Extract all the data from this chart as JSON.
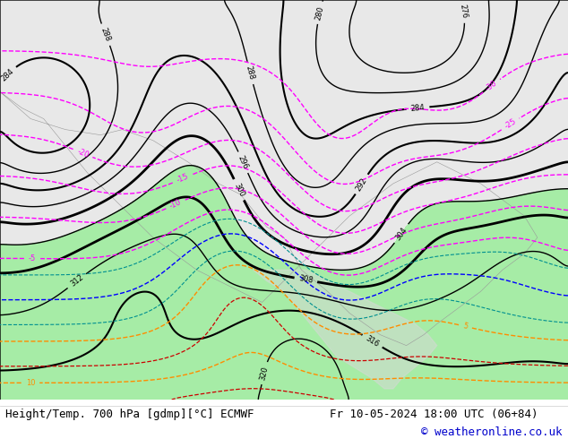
{
  "title_left": "Height/Temp. 700 hPa [gdmp][°C] ECMWF",
  "title_right": "Fr 10-05-2024 18:00 UTC (06+84)",
  "copyright": "© weatheronline.co.uk",
  "background_color": "#ffffff",
  "footer_color": "#000000",
  "copyright_color": "#0000cc",
  "fig_width": 6.34,
  "fig_height": 4.9,
  "dpi": 100,
  "footer_fontsize": 9,
  "copyright_fontsize": 9,
  "map_bg_color": "#e8e8e8",
  "ocean_color": "#d0d8e0",
  "land_color": "#f0f0f0",
  "green_fill": "#90ee90",
  "geo_color": "#000000",
  "temp_pos_color": "#ff8c00",
  "temp_neg_color": "#ff00ff",
  "temp_teal_color": "#009090",
  "temp_red_color": "#cc0000",
  "temp_blue_color": "#0000ff",
  "label_fontsize": 6,
  "geo_lw": 1.8,
  "temp_lw": 1.0
}
